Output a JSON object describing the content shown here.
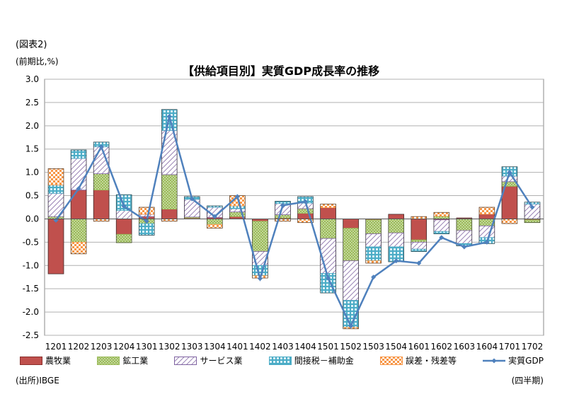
{
  "figure_label": "(図表2)",
  "unit_label": "(前期比,%)",
  "source": "(出所)IBGE",
  "period_label": "(四半期)",
  "chart_data": {
    "type": "bar",
    "stacked": true,
    "title": "【供給項目別】実質GDP成長率の推移",
    "xlabel": "",
    "ylabel": "",
    "ylim": [
      -2.5,
      3.0
    ],
    "yticks": [
      3.0,
      2.5,
      2.0,
      1.5,
      1.0,
      0.5,
      0.0,
      -0.5,
      -1.0,
      -1.5,
      -2.0,
      -2.5
    ],
    "ytick_labels": [
      "3.0",
      "2.5",
      "2.0",
      "1.5",
      "1.0",
      "0.5",
      "0.0",
      "-0.5",
      "-1.0",
      "-1.5",
      "-2.0",
      "-2.5"
    ],
    "grid": true,
    "legend_position": "bottom",
    "categories": [
      "1201",
      "1202",
      "1203",
      "1204",
      "1301",
      "1302",
      "1303",
      "1304",
      "1401",
      "1402",
      "1403",
      "1404",
      "1501",
      "1502",
      "1503",
      "1504",
      "1601",
      "1602",
      "1603",
      "1604",
      "1701",
      "1702"
    ],
    "series": [
      {
        "name": "農牧業",
        "kind": "bar",
        "color": "#c0504d",
        "pattern": "solid",
        "values": [
          -1.18,
          0.62,
          0.62,
          -0.33,
          0.05,
          0.21,
          0.02,
          0.03,
          0.05,
          -0.05,
          0.02,
          0.12,
          0.24,
          -0.2,
          -0.02,
          0.1,
          -0.45,
          -0.02,
          0.02,
          0.1,
          0.7,
          -0.02
        ]
      },
      {
        "name": "鉱工業",
        "kind": "bar",
        "color": "#9bbb59",
        "pattern": "dots",
        "values": [
          0.05,
          -0.5,
          0.35,
          -0.18,
          -0.1,
          0.74,
          0.02,
          -0.12,
          0.1,
          -0.65,
          0.07,
          0.1,
          -0.42,
          -0.7,
          -0.3,
          -0.3,
          -0.05,
          0.06,
          -0.25,
          -0.15,
          0.1,
          -0.06
        ]
      },
      {
        "name": "サービス業",
        "kind": "bar",
        "color": "#8064a2",
        "pattern": "hatch",
        "values": [
          0.5,
          0.68,
          0.58,
          0.18,
          0.05,
          0.95,
          0.38,
          0.22,
          0.07,
          -0.3,
          0.24,
          0.12,
          -0.75,
          -0.85,
          -0.28,
          -0.3,
          -0.15,
          -0.25,
          -0.28,
          -0.25,
          0.12,
          0.32
        ]
      },
      {
        "name": "間接税－補助金",
        "kind": "bar",
        "color": "#4bacc6",
        "pattern": "grid",
        "values": [
          0.18,
          0.18,
          0.1,
          0.34,
          -0.25,
          0.45,
          0.06,
          0.03,
          0.06,
          -0.22,
          0.05,
          0.14,
          -0.42,
          -0.58,
          -0.3,
          -0.32,
          -0.05,
          -0.05,
          -0.05,
          -0.13,
          0.2,
          0.04
        ]
      },
      {
        "name": "誤差・残差等",
        "kind": "bar",
        "color": "#f79646",
        "pattern": "checker",
        "values": [
          0.35,
          -0.25,
          -0.05,
          0.0,
          0.15,
          -0.05,
          0.0,
          -0.08,
          0.22,
          -0.05,
          -0.05,
          -0.08,
          0.08,
          -0.03,
          -0.05,
          0.0,
          0.05,
          0.08,
          0.0,
          0.15,
          -0.1,
          0.0
        ]
      },
      {
        "name": "実質GDP",
        "kind": "line",
        "color": "#4f81bd",
        "values": [
          -0.03,
          0.65,
          1.55,
          0.27,
          -0.05,
          2.2,
          0.43,
          0.05,
          0.48,
          -1.28,
          0.29,
          0.37,
          -1.27,
          -2.3,
          -1.25,
          -0.9,
          -0.95,
          -0.4,
          -0.6,
          -0.5,
          1.0,
          0.25
        ]
      }
    ]
  }
}
